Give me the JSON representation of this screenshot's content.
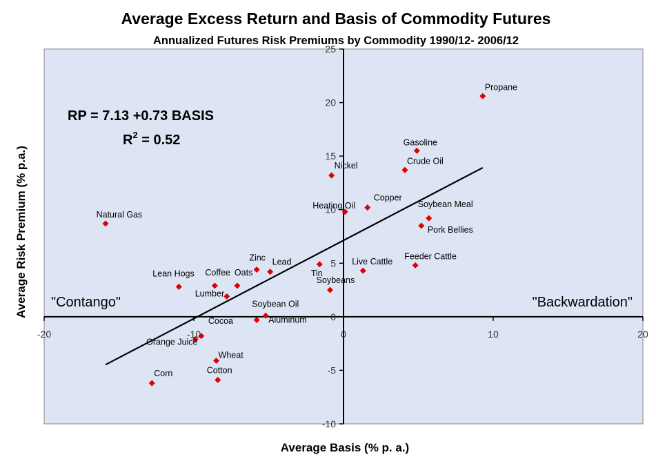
{
  "chart_data": {
    "type": "scatter",
    "title": "Average Excess Return and Basis of Commodity Futures",
    "subtitle": "Annualized Futures Risk Premiums by Commodity 1990/12- 2006/12",
    "xlabel": "Average Basis (% p. a.)",
    "ylabel": "Average Risk Premium (% p.a.)",
    "xlim": [
      -20,
      20
    ],
    "ylim": [
      -10,
      25
    ],
    "xticks": [
      -20,
      -10,
      0,
      10,
      20
    ],
    "yticks": [
      -10,
      -5,
      0,
      5,
      10,
      15,
      20,
      25
    ],
    "xtick_labels": [
      "-20",
      "-10",
      "0",
      "10",
      "20"
    ],
    "ytick_labels": [
      "-10",
      "-5",
      "0",
      "5",
      "10",
      "15",
      "20",
      "25"
    ],
    "grid": false,
    "background": "#dde5f5",
    "marker_color": "#e00000",
    "points": [
      {
        "name": "Propane",
        "x": 9.3,
        "y": 20.6
      },
      {
        "name": "Gasoline",
        "x": 4.9,
        "y": 15.5
      },
      {
        "name": "Crude Oil",
        "x": 4.1,
        "y": 13.7
      },
      {
        "name": "Nickel",
        "x": -0.8,
        "y": 13.2
      },
      {
        "name": "Heating Oil",
        "x": 0.1,
        "y": 9.8
      },
      {
        "name": "Copper",
        "x": 1.6,
        "y": 10.2
      },
      {
        "name": "Soybean Meal",
        "x": 5.7,
        "y": 9.2
      },
      {
        "name": "Pork Bellies",
        "x": 5.2,
        "y": 8.5
      },
      {
        "name": "Natural Gas",
        "x": -15.9,
        "y": 8.7
      },
      {
        "name": "Live Cattle",
        "x": 1.3,
        "y": 4.3
      },
      {
        "name": "Feeder Cattle",
        "x": 4.8,
        "y": 4.8
      },
      {
        "name": "Tin",
        "x": -1.6,
        "y": 4.9
      },
      {
        "name": "Soybeans",
        "x": -0.9,
        "y": 2.5
      },
      {
        "name": "Zinc",
        "x": -5.8,
        "y": 4.4
      },
      {
        "name": "Lead",
        "x": -4.9,
        "y": 4.2
      },
      {
        "name": "Lean Hogs",
        "x": -11.0,
        "y": 2.8
      },
      {
        "name": "Coffee",
        "x": -8.6,
        "y": 2.9
      },
      {
        "name": "Oats",
        "x": -7.1,
        "y": 2.9
      },
      {
        "name": "Lumber",
        "x": -7.8,
        "y": 1.9
      },
      {
        "name": "Soybean Oil",
        "x": -5.2,
        "y": 0.1
      },
      {
        "name": "Aluminum",
        "x": -5.8,
        "y": -0.3
      },
      {
        "name": "Cocoa",
        "x": -9.5,
        "y": -1.8
      },
      {
        "name": "Orange Juice",
        "x": -9.9,
        "y": -2.1
      },
      {
        "name": "Wheat",
        "x": -8.5,
        "y": -4.1
      },
      {
        "name": "Cotton",
        "x": -8.4,
        "y": -5.9
      },
      {
        "name": "Corn",
        "x": -12.8,
        "y": -6.2
      }
    ],
    "fit_line": {
      "intercept": 7.13,
      "slope": 0.73,
      "x_range": [
        -15.9,
        9.3
      ],
      "color": "#000000"
    },
    "annotations": {
      "equation": "RP =  7.13 +0.73 BASIS",
      "r2_prefix": "R",
      "r2_sup": "2",
      "r2_value": " = 0.52",
      "left_region": "\"Contango\"",
      "right_region": "\"Backwardation\""
    }
  }
}
